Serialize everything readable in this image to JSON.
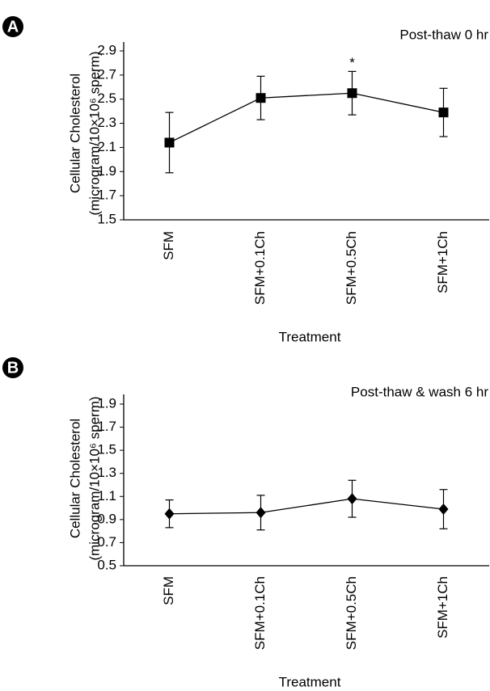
{
  "chart_data": [
    {
      "type": "line",
      "panel": "A",
      "subtitle": "Post-thaw 0 hr",
      "x_label": "Treatment",
      "y_label": [
        "Cellular Cholesterol",
        "(microgram/10×10⁶ sperm)"
      ],
      "categories": [
        "SFM",
        "SFM+0.1Ch",
        "SFM+0.5Ch",
        "SFM+1Ch"
      ],
      "series": [
        {
          "color": "#000000",
          "marker": "square",
          "values": [
            2.14,
            2.51,
            2.55,
            2.39
          ],
          "errors": [
            0.25,
            0.18,
            0.18,
            0.2
          ]
        }
      ],
      "annotations": [
        {
          "text": "*",
          "category": "SFM+0.5Ch"
        }
      ],
      "ylim": [
        1.5,
        2.9
      ],
      "yticks": [
        1.5,
        1.7,
        1.9,
        2.1,
        2.3,
        2.5,
        2.7,
        2.9
      ],
      "grid": false
    },
    {
      "type": "line",
      "panel": "B",
      "subtitle": "Post-thaw & wash 6 hr",
      "x_label": "Treatment",
      "y_label": [
        "Cellular Cholesterol",
        "(microgram/10×10⁶ sperm)"
      ],
      "categories": [
        "SFM",
        "SFM+0.1Ch",
        "SFM+0.5Ch",
        "SFM+1Ch"
      ],
      "series": [
        {
          "color": "#000000",
          "marker": "diamond",
          "values": [
            0.95,
            0.96,
            1.08,
            0.99
          ],
          "errors": [
            0.12,
            0.15,
            0.16,
            0.17
          ]
        }
      ],
      "ylim": [
        0.5,
        1.9
      ],
      "yticks": [
        0.5,
        0.7,
        0.9,
        1.1,
        1.3,
        1.5,
        1.7,
        1.9
      ],
      "grid": false
    }
  ]
}
